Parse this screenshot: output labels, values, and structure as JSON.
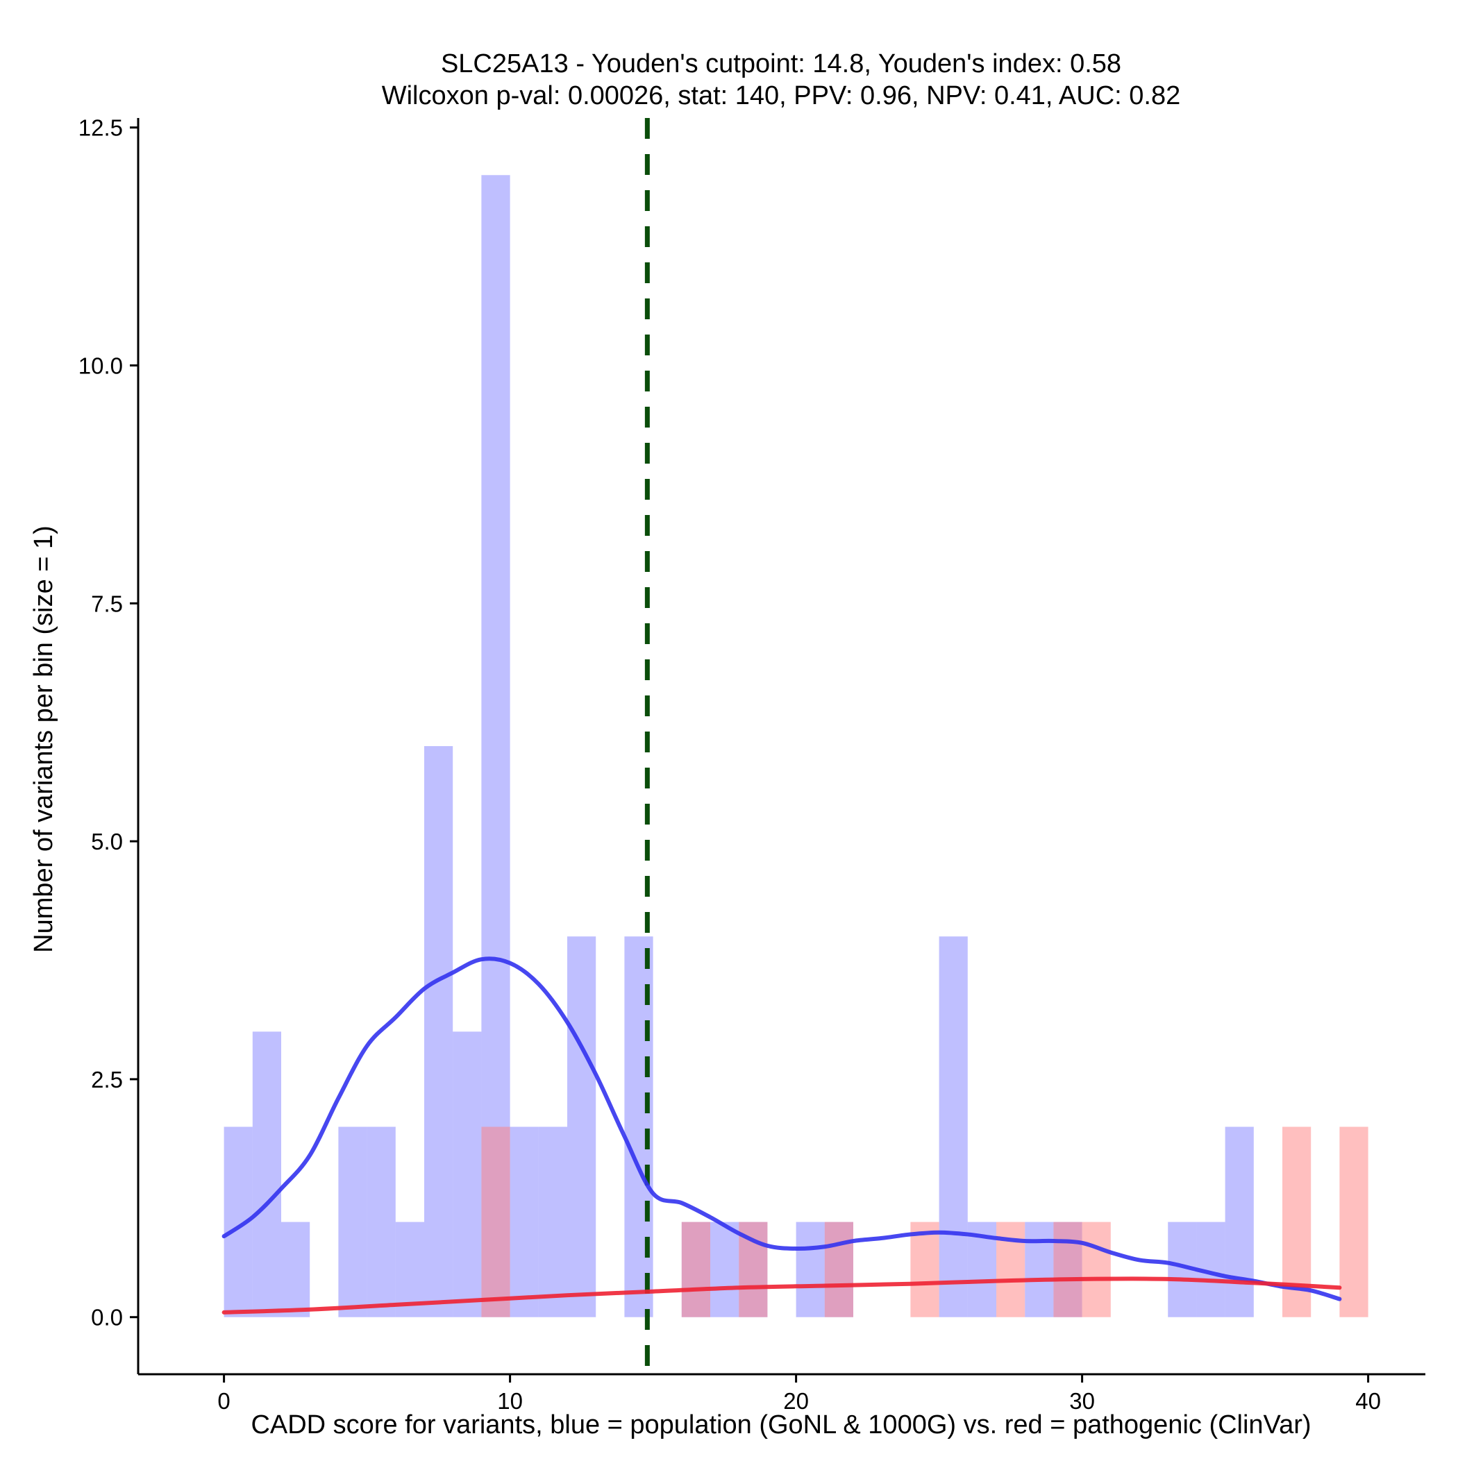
{
  "chart_data": {
    "type": "histogram",
    "title_line1": "SLC25A13 - Youden's cutpoint: 14.8, Youden's index: 0.58",
    "title_line2": "Wilcoxon p-val: 0.00026, stat: 140, PPV: 0.96, NPV: 0.41, AUC: 0.82",
    "xlabel": "CADD score for variants, blue = population (GoNL & 1000G) vs. red = pathogenic (ClinVar)",
    "ylabel": "Number of variants per bin (size = 1)",
    "xlim": [
      -3,
      42
    ],
    "ylim": [
      -0.6,
      12.6
    ],
    "x_ticks": [
      0,
      10,
      20,
      30,
      40
    ],
    "x_tick_labels": [
      "0",
      "10",
      "20",
      "30",
      "40"
    ],
    "y_ticks": [
      0,
      2.5,
      5,
      7.5,
      10,
      12.5
    ],
    "y_tick_labels": [
      "0.0",
      "2.5",
      "5.0",
      "7.5",
      "10.0",
      "12.5"
    ],
    "bin_size": 1,
    "cutpoint": 14.8,
    "colors": {
      "population_bar": "#8080ff",
      "pathogenic_bar": "#ff8080",
      "population_line": "#3333ee",
      "pathogenic_line": "#ee2233",
      "cutpoint_line": "#0a4d0a"
    },
    "series": [
      {
        "name": "population (GoNL & 1000G)",
        "bins": [
          {
            "x": 0,
            "count": 2
          },
          {
            "x": 1,
            "count": 3
          },
          {
            "x": 2,
            "count": 1
          },
          {
            "x": 4,
            "count": 2
          },
          {
            "x": 5,
            "count": 2
          },
          {
            "x": 6,
            "count": 1
          },
          {
            "x": 7,
            "count": 6
          },
          {
            "x": 8,
            "count": 3
          },
          {
            "x": 9,
            "count": 12
          },
          {
            "x": 10,
            "count": 2
          },
          {
            "x": 11,
            "count": 2
          },
          {
            "x": 12,
            "count": 4
          },
          {
            "x": 14,
            "count": 4
          },
          {
            "x": 16,
            "count": 1
          },
          {
            "x": 17,
            "count": 1
          },
          {
            "x": 18,
            "count": 1
          },
          {
            "x": 20,
            "count": 1
          },
          {
            "x": 21,
            "count": 1
          },
          {
            "x": 25,
            "count": 4
          },
          {
            "x": 26,
            "count": 1
          },
          {
            "x": 28,
            "count": 1
          },
          {
            "x": 29,
            "count": 1
          },
          {
            "x": 33,
            "count": 1
          },
          {
            "x": 34,
            "count": 1
          },
          {
            "x": 35,
            "count": 2
          }
        ],
        "density_x": [
          0,
          1,
          2,
          3,
          4,
          5,
          6,
          7,
          8,
          9,
          10,
          11,
          12,
          13,
          14,
          15,
          16,
          17,
          18,
          19,
          20,
          21,
          22,
          23,
          24,
          25,
          26,
          27,
          28,
          29,
          30,
          31,
          32,
          33,
          34,
          35,
          36,
          37,
          38,
          39
        ],
        "density_y": [
          0.85,
          1.05,
          1.35,
          1.7,
          2.3,
          2.85,
          3.15,
          3.45,
          3.62,
          3.76,
          3.72,
          3.5,
          3.1,
          2.55,
          1.9,
          1.3,
          1.2,
          1.05,
          0.88,
          0.75,
          0.72,
          0.74,
          0.8,
          0.83,
          0.87,
          0.89,
          0.87,
          0.83,
          0.8,
          0.8,
          0.78,
          0.68,
          0.6,
          0.57,
          0.5,
          0.43,
          0.38,
          0.32,
          0.28,
          0.19
        ]
      },
      {
        "name": "pathogenic (ClinVar)",
        "bins": [
          {
            "x": 9,
            "count": 2
          },
          {
            "x": 16,
            "count": 1
          },
          {
            "x": 18,
            "count": 1
          },
          {
            "x": 21,
            "count": 1
          },
          {
            "x": 24,
            "count": 1
          },
          {
            "x": 27,
            "count": 1
          },
          {
            "x": 29,
            "count": 1
          },
          {
            "x": 30,
            "count": 1
          },
          {
            "x": 37,
            "count": 2
          },
          {
            "x": 39,
            "count": 2
          }
        ],
        "density_x": [
          0,
          3,
          6,
          9,
          12,
          15,
          18,
          21,
          24,
          27,
          30,
          33,
          36,
          39
        ],
        "density_y": [
          0.05,
          0.08,
          0.13,
          0.18,
          0.23,
          0.27,
          0.31,
          0.33,
          0.35,
          0.38,
          0.4,
          0.4,
          0.36,
          0.31
        ]
      }
    ]
  }
}
